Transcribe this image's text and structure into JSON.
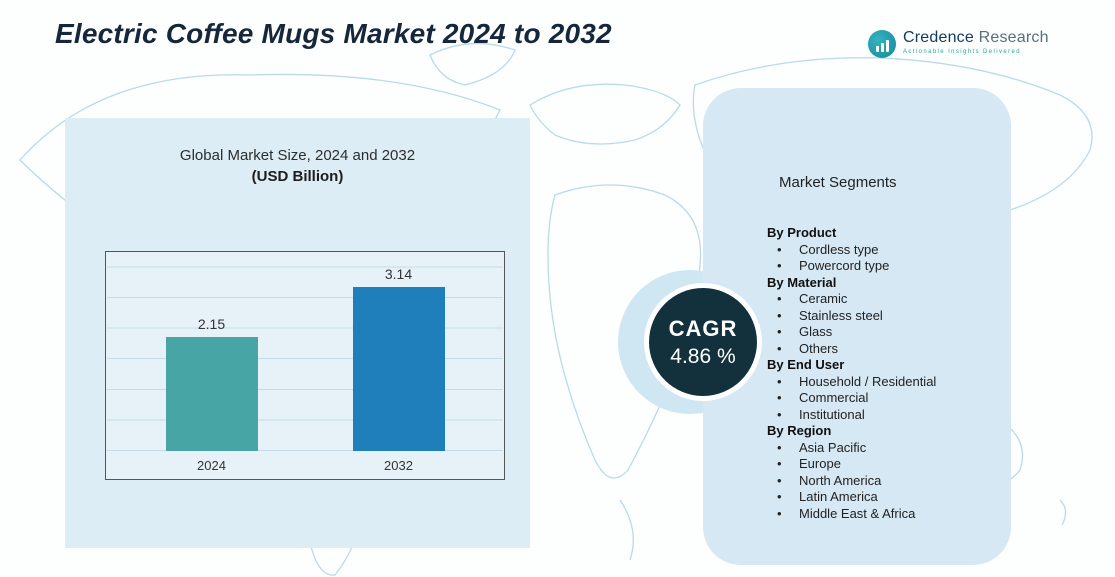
{
  "header": {
    "title": "Electric Coffee Mugs Market 2024 to 2032"
  },
  "logo": {
    "name_primary": "Credence",
    "name_secondary": " Research",
    "tagline": "Actionable Insights Delivered",
    "icon": "bar-chart-circle-icon"
  },
  "chart_data": {
    "type": "bar",
    "title": "Global Market Size, 2024 and 2032",
    "subtitle": "(USD Billion)",
    "categories": [
      "2024",
      "2032"
    ],
    "values": [
      2.15,
      3.14
    ],
    "value_labels": [
      "2.15",
      "3.14"
    ],
    "ylim": [
      0,
      3.5
    ],
    "grid": true,
    "legend_position": "none",
    "bar_colors": [
      "#47a5a5",
      "#1f7fba"
    ]
  },
  "cagr": {
    "label": "CAGR",
    "value": "4.86 %"
  },
  "segments": {
    "heading": "Market Segments",
    "groups": [
      {
        "label": "By Product",
        "items": [
          "Cordless type",
          "Powercord type"
        ]
      },
      {
        "label": "By  Material",
        "items": [
          "Ceramic",
          "Stainless steel",
          "Glass",
          "Others"
        ]
      },
      {
        "label": "By End User",
        "items": [
          "Household / Residential",
          "Commercial",
          "Institutional"
        ]
      },
      {
        "label": "By Region",
        "items": [
          "Asia Pacific",
          "Europe",
          "North America",
          "Latin America",
          "Middle East & Africa"
        ]
      }
    ]
  },
  "colors": {
    "accent_teal": "#47a5a5",
    "accent_blue": "#1f7fba",
    "left_panel_bg": "#dcedf5",
    "right_panel_bg": "#d5e8f3",
    "cagr_circle_bg": "#13303d",
    "map_stroke": "#b7d7e8",
    "title_color": "#16273c"
  }
}
